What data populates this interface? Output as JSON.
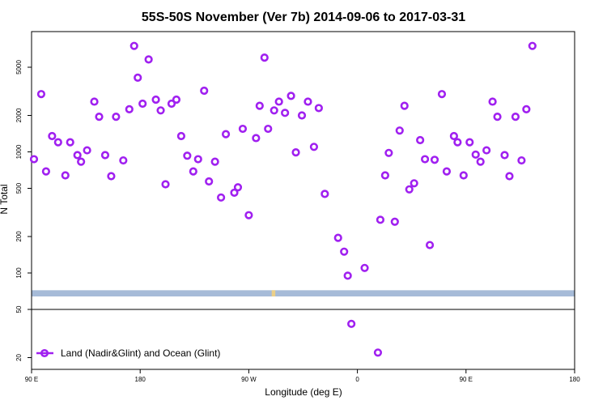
{
  "chart_data": {
    "type": "scatter",
    "title": "55S-50S November (Ver 7b)   2014-09-06 to 2017-03-31",
    "xlabel": "Longitude (deg E)",
    "ylabel": "N Total",
    "xlim": [
      90,
      540
    ],
    "ylim": [
      15,
      10000
    ],
    "y_scale": "log",
    "x_ticks": [
      {
        "value": 90,
        "label": "90 E"
      },
      {
        "value": 180,
        "label": "180"
      },
      {
        "value": 270,
        "label": "90 W"
      },
      {
        "value": 360,
        "label": "0"
      },
      {
        "value": 450,
        "label": "90 E"
      },
      {
        "value": 540,
        "label": "180"
      }
    ],
    "y_ticks": [
      {
        "value": 20,
        "label": "20"
      },
      {
        "value": 50,
        "label": "50"
      },
      {
        "value": 100,
        "label": "100"
      },
      {
        "value": 200,
        "label": "200"
      },
      {
        "value": 500,
        "label": "500"
      },
      {
        "value": 1000,
        "label": "1000"
      },
      {
        "value": 2000,
        "label": "2000"
      },
      {
        "value": 5000,
        "label": "5000"
      }
    ],
    "legend_position": "bottom-left",
    "series": [
      {
        "name": "Land (Nadir&Glint) and Ocean (Glint)",
        "color": "#a020f0",
        "marker": "open-circle",
        "points": [
          [
            92,
            870
          ],
          [
            98,
            3000
          ],
          [
            102,
            690
          ],
          [
            107,
            1350
          ],
          [
            112,
            1200
          ],
          [
            118,
            640
          ],
          [
            122,
            1200
          ],
          [
            128,
            940
          ],
          [
            131,
            830
          ],
          [
            136,
            1030
          ],
          [
            142,
            2600
          ],
          [
            146,
            1950
          ],
          [
            151,
            940
          ],
          [
            156,
            630
          ],
          [
            160,
            1950
          ],
          [
            166,
            850
          ],
          [
            171,
            2250
          ],
          [
            175,
            7500
          ],
          [
            178,
            4100
          ],
          [
            182,
            2500
          ],
          [
            187,
            5800
          ],
          [
            193,
            2700
          ],
          [
            197,
            2200
          ],
          [
            201,
            540
          ],
          [
            206,
            2500
          ],
          [
            210,
            2700
          ],
          [
            214,
            1350
          ],
          [
            219,
            930
          ],
          [
            224,
            690
          ],
          [
            228,
            870
          ],
          [
            233,
            3200
          ],
          [
            237,
            570
          ],
          [
            242,
            830
          ],
          [
            247,
            420
          ],
          [
            251,
            1400
          ],
          [
            258,
            460
          ],
          [
            261,
            510
          ],
          [
            265,
            1550
          ],
          [
            270,
            300
          ],
          [
            276,
            1300
          ],
          [
            279,
            2400
          ],
          [
            283,
            6000
          ],
          [
            286,
            1550
          ],
          [
            291,
            2200
          ],
          [
            295,
            2600
          ],
          [
            300,
            2100
          ],
          [
            305,
            2900
          ],
          [
            309,
            990
          ],
          [
            314,
            2000
          ],
          [
            319,
            2600
          ],
          [
            324,
            1100
          ],
          [
            328,
            2300
          ],
          [
            333,
            450
          ],
          [
            344,
            195
          ],
          [
            349,
            150
          ],
          [
            352,
            95
          ],
          [
            355,
            38
          ],
          [
            366,
            110
          ],
          [
            377,
            22
          ],
          [
            379,
            275
          ],
          [
            383,
            640
          ],
          [
            386,
            980
          ],
          [
            391,
            265
          ],
          [
            395,
            1500
          ],
          [
            399,
            2400
          ],
          [
            403,
            490
          ],
          [
            407,
            550
          ],
          [
            412,
            1250
          ],
          [
            416,
            870
          ],
          [
            420,
            170
          ],
          [
            424,
            860
          ],
          [
            430,
            3000
          ],
          [
            434,
            690
          ],
          [
            440,
            1350
          ],
          [
            443,
            1200
          ],
          [
            448,
            640
          ],
          [
            453,
            1200
          ],
          [
            458,
            950
          ],
          [
            462,
            830
          ],
          [
            467,
            1030
          ],
          [
            472,
            2600
          ],
          [
            476,
            1950
          ],
          [
            482,
            940
          ],
          [
            486,
            630
          ],
          [
            491,
            1950
          ],
          [
            496,
            850
          ],
          [
            500,
            2250
          ],
          [
            505,
            7500
          ]
        ]
      }
    ],
    "background_band": {
      "y_range": [
        64,
        72
      ],
      "color": "#a6bbd8",
      "highlight_color": "#f7d27a",
      "highlight_x": [
        289,
        292
      ]
    }
  }
}
